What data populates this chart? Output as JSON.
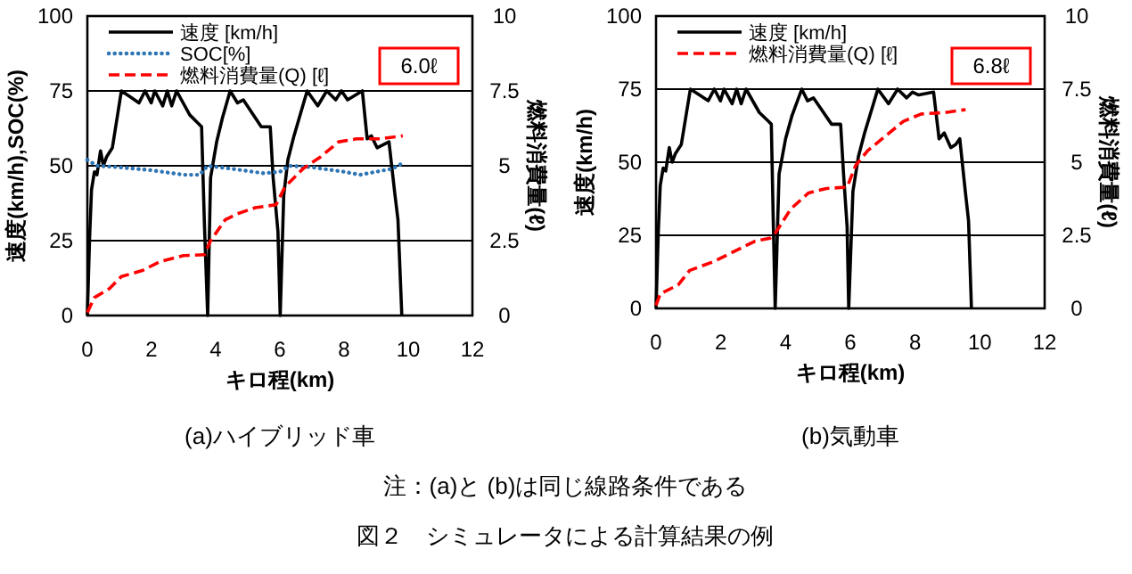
{
  "chart_data": [
    {
      "type": "line",
      "title": "(a)ハイブリッド車",
      "xlabel": "キロ程(km)",
      "ylabel": "速度(km/h),SOC(%)",
      "y2label": "燃料消費量(ℓ)",
      "xlim": [
        0,
        12
      ],
      "xticks": [
        0,
        2,
        4,
        6,
        8,
        10,
        12
      ],
      "ylim": [
        0,
        100
      ],
      "yticks": [
        0,
        25,
        50,
        75,
        100
      ],
      "y2lim": [
        0,
        10
      ],
      "y2ticks": [
        0,
        2.5,
        5,
        7.5,
        10
      ],
      "grid": "y",
      "legend": "top left",
      "marker": "none",
      "annotations": [
        "6.0ℓ",
        "注：(a)と (b)は同じ線路条件である",
        "図２　シミュレータによる計算結果の例"
      ],
      "series": [
        {
          "name": "速度 [km/h]",
          "color": "#000000",
          "line_style": "solid",
          "x": [
            0,
            0.07,
            0.13,
            0.22,
            0.3,
            0.41,
            0.5,
            0.6,
            0.78,
            1.06,
            1.34,
            1.61,
            1.8,
            1.99,
            2.1,
            2.35,
            2.49,
            2.63,
            2.78,
            3.19,
            3.47,
            3.56,
            3.65,
            3.75,
            3.84,
            4.03,
            4.21,
            4.45,
            4.68,
            4.86,
            5.05,
            5.42,
            5.7,
            5.79,
            5.94,
            6.01,
            6.12,
            6.25,
            6.44,
            6.85,
            7.18,
            7.46,
            7.74,
            7.92,
            8.11,
            8.57,
            8.72,
            8.85,
            9.03,
            9.22,
            9.4,
            9.59,
            9.68,
            9.8
          ],
          "values": [
            0,
            26,
            42,
            48,
            47,
            55,
            50,
            53,
            56,
            75,
            73,
            71,
            75,
            71,
            75,
            70,
            75,
            70,
            75,
            67,
            64,
            63,
            30,
            0,
            46,
            58,
            66,
            75,
            71,
            72,
            69,
            63,
            63,
            46,
            28,
            0,
            40,
            52,
            60,
            75,
            70,
            75,
            72,
            75,
            72,
            75,
            59,
            60,
            56,
            57,
            58,
            40,
            32,
            0
          ]
        },
        {
          "name": "SOC[%]",
          "color": "#2e75b6",
          "line_style": "dotted",
          "x": [
            0,
            0.3,
            1,
            2,
            3,
            3.5,
            3.75,
            4.5,
            5.5,
            6,
            6.3,
            7,
            8,
            8.5,
            9,
            9.5,
            9.85
          ],
          "values": [
            52,
            50,
            49.5,
            48.5,
            47,
            47,
            50,
            49,
            47.5,
            48,
            50,
            49.5,
            48,
            47,
            48,
            49,
            51
          ]
        },
        {
          "name": "燃料消費量(Q) [ℓ]",
          "color": "#ff0000",
          "line_style": "dashed",
          "axis": "y2",
          "x": [
            0,
            0.22,
            0.69,
            1.06,
            1.71,
            2.26,
            3.0,
            3.65,
            3.84,
            4.3,
            4.68,
            5.23,
            5.88,
            6.16,
            6.72,
            7.27,
            7.83,
            8.39,
            9.13,
            9.83
          ],
          "values": [
            0.1,
            0.6,
            0.9,
            1.3,
            1.5,
            1.8,
            2.0,
            2.03,
            2.5,
            3.2,
            3.4,
            3.6,
            3.7,
            4.3,
            4.9,
            5.3,
            5.8,
            5.9,
            5.9,
            6.0
          ]
        }
      ]
    },
    {
      "type": "line",
      "title": "(b)気動車",
      "xlabel": "キロ程(km)",
      "ylabel": "速度(km/h)",
      "y2label": "燃料消費量(ℓ)",
      "xlim": [
        0,
        12
      ],
      "xticks": [
        0,
        2,
        4,
        6,
        8,
        10,
        12
      ],
      "ylim": [
        0,
        100
      ],
      "yticks": [
        0,
        25,
        50,
        75,
        100
      ],
      "y2lim": [
        0,
        10
      ],
      "y2ticks": [
        0,
        2.5,
        5,
        7.5,
        10
      ],
      "grid": "y",
      "legend": "top left",
      "marker": "none",
      "annotations": [
        "6.8ℓ"
      ],
      "series": [
        {
          "name": "速度 [km/h]",
          "color": "#000000",
          "line_style": "solid",
          "x": [
            0,
            0.07,
            0.13,
            0.22,
            0.3,
            0.41,
            0.5,
            0.6,
            0.78,
            1.06,
            1.34,
            1.61,
            1.8,
            1.99,
            2.1,
            2.35,
            2.49,
            2.63,
            2.78,
            3.19,
            3.47,
            3.56,
            3.62,
            3.68,
            3.8,
            4.0,
            4.2,
            4.5,
            4.68,
            4.86,
            5.05,
            5.42,
            5.7,
            5.79,
            5.9,
            5.95,
            6.08,
            6.25,
            6.44,
            6.85,
            7.18,
            7.46,
            7.74,
            7.92,
            8.11,
            8.57,
            8.74,
            8.9,
            9.1,
            9.25,
            9.38,
            9.55,
            9.65,
            9.74
          ],
          "values": [
            0,
            26,
            42,
            48,
            47,
            55,
            50,
            53,
            56,
            75,
            73,
            71,
            75,
            71,
            75,
            70,
            75,
            70,
            75,
            67,
            64,
            63,
            30,
            0,
            46,
            58,
            66,
            75,
            71,
            72,
            69,
            63,
            63,
            46,
            28,
            0,
            40,
            52,
            60,
            75,
            70,
            75,
            72,
            74,
            73,
            74,
            58,
            60,
            55,
            56,
            58,
            40,
            30,
            0
          ]
        },
        {
          "name": "燃料消費量(Q) [ℓ]",
          "color": "#ff0000",
          "line_style": "dashed",
          "axis": "y2",
          "x": [
            0,
            0.13,
            0.68,
            1.04,
            1.78,
            2.51,
            3.06,
            3.52,
            3.7,
            4.16,
            4.71,
            5.26,
            5.9,
            6.17,
            6.54,
            7.09,
            7.64,
            8.19,
            8.92,
            9.56
          ],
          "values": [
            0.1,
            0.5,
            0.8,
            1.3,
            1.6,
            2.0,
            2.3,
            2.4,
            2.6,
            3.4,
            3.95,
            4.1,
            4.15,
            4.9,
            5.4,
            5.9,
            6.4,
            6.65,
            6.7,
            6.8
          ]
        }
      ]
    }
  ]
}
